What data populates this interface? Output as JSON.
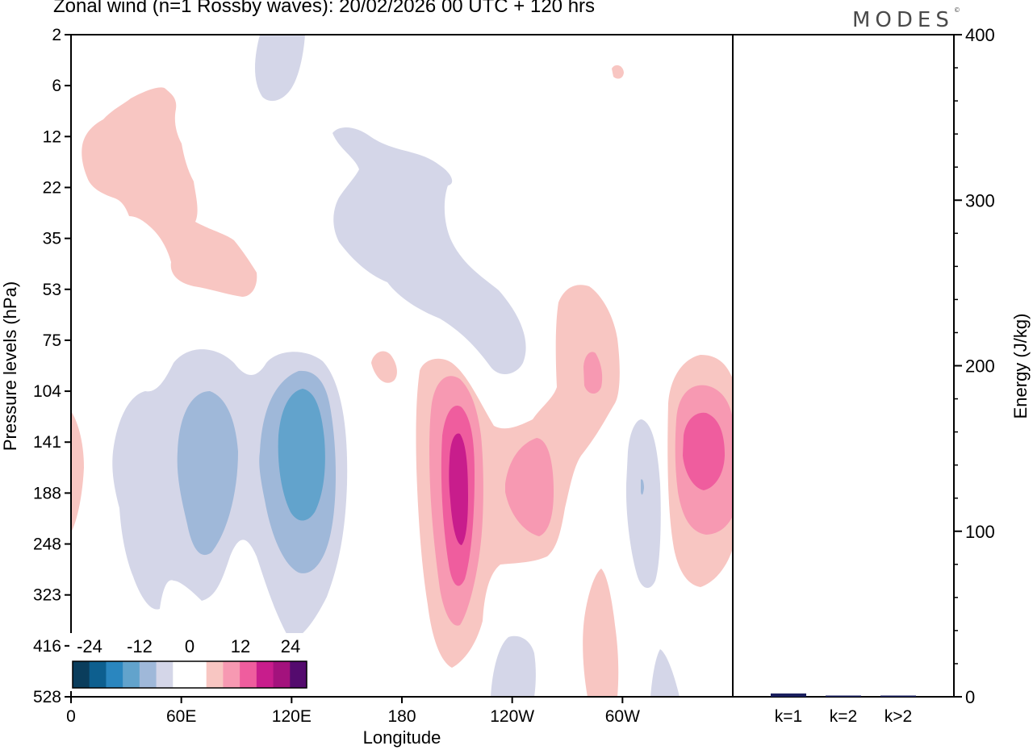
{
  "title": "Zonal wind (n=1 Rossby waves):  20/02/2026  00 UTC  + 120 hrs",
  "brand": "MODES",
  "brand_mark": "©",
  "chart_data": [
    {
      "type": "heatmap",
      "description_title": "Zonal wind (n=1 Rossby waves)",
      "xlabel": "Longitude",
      "ylabel": "Pressure levels (hPa)",
      "x_ticks": [
        {
          "lon": 0,
          "label": "0"
        },
        {
          "lon": 60,
          "label": "60E"
        },
        {
          "lon": 120,
          "label": "120E"
        },
        {
          "lon": 180,
          "label": "180"
        },
        {
          "lon": 240,
          "label": "120W"
        },
        {
          "lon": 300,
          "label": "60W"
        }
      ],
      "x_range": [
        0,
        360
      ],
      "y_levels": [
        "2",
        "6",
        "12",
        "22",
        "35",
        "53",
        "75",
        "104",
        "141",
        "188",
        "248",
        "323",
        "416",
        "528"
      ],
      "colorbar": {
        "labels": [
          "-24",
          "-12",
          "0",
          "12",
          "24"
        ],
        "colors": [
          "#0a3d5c",
          "#0d5f8f",
          "#2a86bf",
          "#62a3cc",
          "#9fb8d9",
          "#d4d6e8",
          "#ffffff",
          "#ffffff",
          "#f8c6c2",
          "#f799b2",
          "#ef5d9e",
          "#c81d8c",
          "#a3127d",
          "#540b6e"
        ]
      },
      "features": [
        {
          "name": "pos-region-1",
          "sign": "positive",
          "lon": [
            5,
            100
          ],
          "level": [
            "6",
            "53"
          ],
          "max_level": 1
        },
        {
          "name": "pos-region-2",
          "sign": "positive",
          "lon": [
            165,
            250
          ],
          "level": [
            "75",
            "416"
          ],
          "max_level": 4
        },
        {
          "name": "pos-region-3",
          "sign": "positive",
          "lon": [
            325,
            360
          ],
          "level": [
            "75",
            "323"
          ],
          "max_level": 3
        },
        {
          "name": "neg-region-1",
          "sign": "negative",
          "lon": [
            20,
            150
          ],
          "level": [
            "75",
            "416"
          ],
          "max_level": 3
        },
        {
          "name": "neg-region-2",
          "sign": "negative",
          "lon": [
            70,
            250
          ],
          "level": [
            "2",
            "104"
          ],
          "max_level": 1
        }
      ]
    },
    {
      "type": "bar",
      "categories": [
        "k=1",
        "k=2",
        "k>2"
      ],
      "values": [
        2,
        0.5,
        0.5
      ],
      "ylabel": "Energy (J/kg)",
      "ylim": [
        0,
        400
      ],
      "y_ticks": [
        "0",
        "100",
        "200",
        "300",
        "400"
      ],
      "bar_color": "#1a1f5e"
    }
  ]
}
